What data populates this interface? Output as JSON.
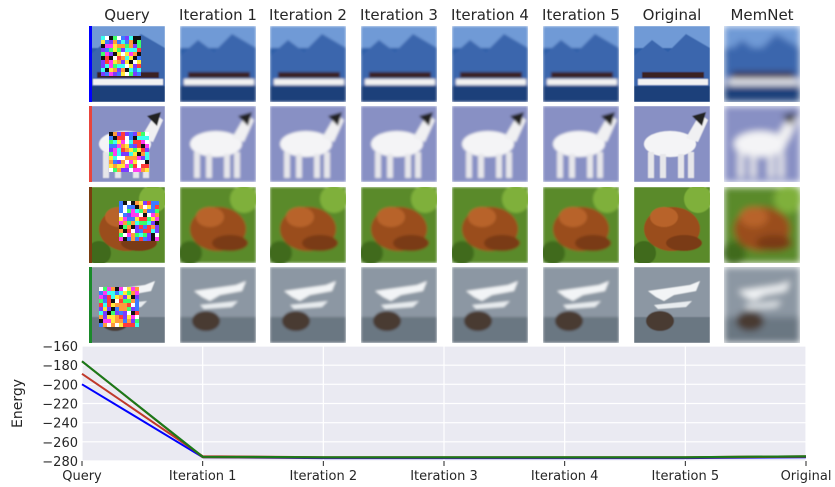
{
  "grid": {
    "columns": [
      "Query",
      "Iteration 1",
      "Iteration 2",
      "Iteration 3",
      "Iteration 4",
      "Iteration 5",
      "Original",
      "MemNet"
    ],
    "rows": [
      {
        "subject": "ship",
        "indicator_color": "#0000ff"
      },
      {
        "subject": "horse",
        "indicator_color": "#e8453c"
      },
      {
        "subject": "frog",
        "indicator_color": "#7a3c0f"
      },
      {
        "subject": "airplane",
        "indicator_color": "#1a8a2a"
      }
    ]
  },
  "chart_data": {
    "type": "line",
    "categories": [
      "Query",
      "Iteration 1",
      "Iteration 2",
      "Iteration 3",
      "Iteration 4",
      "Iteration 5",
      "Original"
    ],
    "ylabel": "Energy",
    "ylim": [
      -280,
      -160
    ],
    "yticks": [
      "−160",
      "−180",
      "−200",
      "−220",
      "−240",
      "−260",
      "−280"
    ],
    "grid": true,
    "series": [
      {
        "color": "#0000ff",
        "values": [
          -200,
          -276,
          -277,
          -277,
          -277,
          -277,
          -276
        ]
      },
      {
        "color": "#c0392b",
        "values": [
          -189,
          -275,
          -276,
          -276,
          -276,
          -276,
          -275
        ]
      },
      {
        "color": "#7a4a10",
        "values": [
          -176,
          -276,
          -276.5,
          -276.5,
          -276.5,
          -276.5,
          -275.5
        ]
      },
      {
        "color": "#1a7a1a",
        "values": [
          -176,
          -275.5,
          -276,
          -276,
          -276,
          -276,
          -275
        ]
      }
    ]
  }
}
